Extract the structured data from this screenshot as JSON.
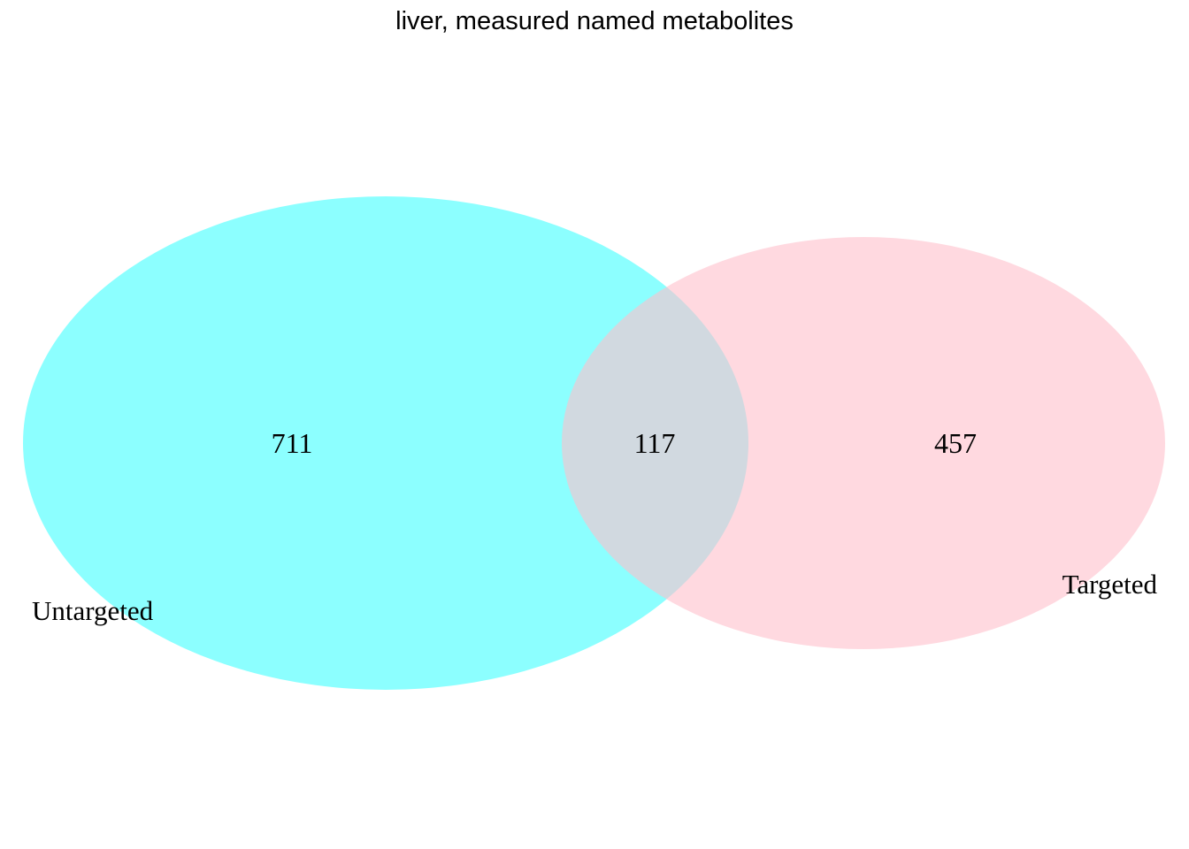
{
  "title": "liver, measured named metabolites",
  "sets": [
    {
      "id": "untargeted",
      "label": "Untargeted",
      "color": "#00FFFF",
      "opacity": 0.45
    },
    {
      "id": "targeted",
      "label": "Targeted",
      "color": "#FFC0CB",
      "opacity": 0.6
    }
  ],
  "regions": {
    "untargeted_only": "711",
    "intersection": "117",
    "targeted_only": "457"
  },
  "chart_data": {
    "type": "venn",
    "title": "liver, measured named metabolites",
    "sets": [
      "Untargeted",
      "Targeted"
    ],
    "values": {
      "Untargeted only": 711,
      "Untargeted & Targeted": 117,
      "Targeted only": 457
    }
  }
}
